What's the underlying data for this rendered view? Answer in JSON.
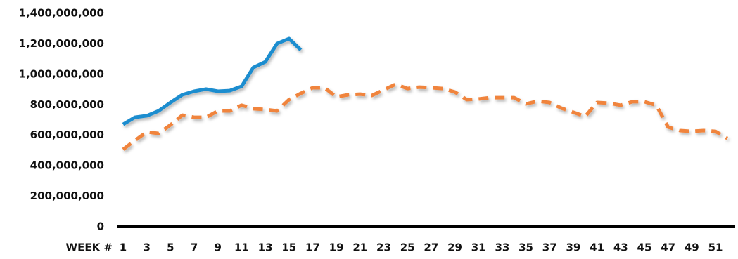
{
  "chart_data": {
    "type": "line",
    "x_label": "WEEK #",
    "categories": [
      "1",
      null,
      "3",
      null,
      "5",
      null,
      "7",
      null,
      "9",
      null,
      "11",
      null,
      "13",
      null,
      "15",
      null,
      "17",
      null,
      "19",
      null,
      "21",
      null,
      "23",
      null,
      "25",
      null,
      "27",
      null,
      "29",
      null,
      "31",
      null,
      "33",
      null,
      "35",
      null,
      "37",
      null,
      "39",
      null,
      "41",
      null,
      "43",
      null,
      "45",
      null,
      "47",
      null,
      "49",
      null,
      "51",
      null
    ],
    "series": [
      {
        "color": "#1b8dcf",
        "style": "solid",
        "values": [
          672000000,
          718000000,
          728000000,
          760000000,
          815000000,
          866000000,
          889000000,
          903000000,
          889000000,
          893000000,
          921000000,
          1045000000,
          1082000000,
          1202000000,
          1234000000,
          1160000000,
          null,
          null,
          null,
          null,
          null,
          null,
          null,
          null,
          null,
          null,
          null,
          null,
          null,
          null,
          null,
          null,
          null,
          null,
          null,
          null,
          null,
          null,
          null,
          null,
          null,
          null,
          null,
          null,
          null,
          null,
          null,
          null,
          null,
          null,
          null,
          null
        ]
      },
      {
        "color": "#f0843c",
        "style": "dashed",
        "values": [
          507000000,
          566000000,
          622000000,
          612000000,
          668000000,
          732000000,
          718000000,
          718000000,
          760000000,
          760000000,
          797000000,
          774000000,
          769000000,
          760000000,
          834000000,
          875000000,
          912000000,
          912000000,
          852000000,
          866000000,
          870000000,
          861000000,
          898000000,
          935000000,
          907000000,
          916000000,
          912000000,
          907000000,
          884000000,
          834000000,
          838000000,
          847000000,
          847000000,
          847000000,
          806000000,
          824000000,
          815000000,
          778000000,
          751000000,
          723000000,
          815000000,
          811000000,
          797000000,
          820000000,
          820000000,
          797000000,
          654000000,
          631000000,
          626000000,
          631000000,
          626000000,
          580000000
        ]
      }
    ],
    "ylim": [
      0,
      1400000000
    ],
    "yticks": [
      0,
      {
        "value": 200000000,
        "label": "200,000,000"
      },
      {
        "value": 400000000,
        "label": "400,000,000"
      },
      {
        "value": 600000000,
        "label": "600,000,000"
      },
      {
        "value": 800000000,
        "label": "800,000,000"
      },
      {
        "value": 1000000000,
        "label": "1,000,000,000"
      },
      {
        "value": 1200000000,
        "label": "1,200,000,000"
      },
      {
        "value": 1400000000,
        "label": "1,400,000,000"
      }
    ],
    "grid": false
  }
}
